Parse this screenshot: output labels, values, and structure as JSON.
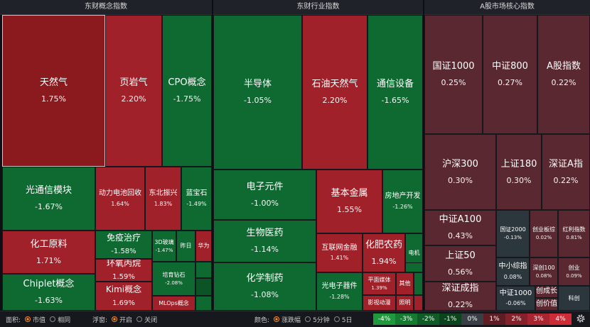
{
  "headers": {
    "concept": "东财概念指数",
    "industry": "东财行业指数",
    "market": "A股市场核心指数"
  },
  "colors": {
    "dark_red": "#8b1a1f",
    "red": "#a1212a",
    "green": "#0f6a31",
    "dark_green": "#0b5426",
    "maroon": "#5a2830",
    "slate": "#2c363d"
  },
  "concept_tiles": [
    {
      "name": "天然气",
      "pct": "1.75%"
    },
    {
      "name": "页岩气",
      "pct": "2.20%"
    },
    {
      "name": "CPO概念",
      "pct": "-1.75%"
    },
    {
      "name": "光通信模块",
      "pct": "-1.67%"
    },
    {
      "name": "动力电池回收",
      "pct": "1.64%"
    },
    {
      "name": "东北振兴",
      "pct": "1.83%"
    },
    {
      "name": "蓝宝石",
      "pct": "-1.49%"
    },
    {
      "name": "化工原料",
      "pct": "1.71%"
    },
    {
      "name": "免疫治疗",
      "pct": "-1.58%"
    },
    {
      "name": "3D玻璃",
      "pct": "-1.47%"
    },
    {
      "name": "昨日",
      "pct": ""
    },
    {
      "name": "华为",
      "pct": ""
    },
    {
      "name": "环氧丙烷",
      "pct": "1.59%"
    },
    {
      "name": "培育钻石",
      "pct": "-2.08%"
    },
    {
      "name": "Chiplet概念",
      "pct": "-1.63%"
    },
    {
      "name": "Kimi概念",
      "pct": "1.69%"
    },
    {
      "name": "MLOps概念",
      "pct": ""
    },
    {
      "name": "",
      "pct": ""
    },
    {
      "name": "",
      "pct": ""
    },
    {
      "name": "",
      "pct": ""
    }
  ],
  "industry_tiles": [
    {
      "name": "半导体",
      "pct": "-1.05%"
    },
    {
      "name": "石油天然气",
      "pct": "2.20%"
    },
    {
      "name": "通信设备",
      "pct": "-1.65%"
    },
    {
      "name": "电子元件",
      "pct": "-1.00%"
    },
    {
      "name": "基本金属",
      "pct": "1.55%"
    },
    {
      "name": "房地产开发",
      "pct": "-1.26%"
    },
    {
      "name": "生物医药",
      "pct": "-1.14%"
    },
    {
      "name": "互联网金融",
      "pct": "1.41%"
    },
    {
      "name": "化肥农药",
      "pct": "1.94%"
    },
    {
      "name": "电机",
      "pct": ""
    },
    {
      "name": "化学制药",
      "pct": "-1.08%"
    },
    {
      "name": "光电子器件",
      "pct": "-1.28%"
    },
    {
      "name": "平面媒体",
      "pct": "1.39%"
    },
    {
      "name": "其他",
      "pct": ""
    },
    {
      "name": "影视动漫",
      "pct": ""
    },
    {
      "name": "照明",
      "pct": ""
    },
    {
      "name": "",
      "pct": ""
    },
    {
      "name": "",
      "pct": ""
    },
    {
      "name": "",
      "pct": ""
    }
  ],
  "market_tiles": [
    {
      "name": "国证1000",
      "pct": "0.25%"
    },
    {
      "name": "中证800",
      "pct": "0.27%"
    },
    {
      "name": "A股指数",
      "pct": "0.22%"
    },
    {
      "name": "沪深300",
      "pct": "0.30%"
    },
    {
      "name": "上证180",
      "pct": "0.30%"
    },
    {
      "name": "深证A指",
      "pct": "0.22%"
    },
    {
      "name": "中证A100",
      "pct": "0.43%"
    },
    {
      "name": "国证2000",
      "pct": "-0.13%"
    },
    {
      "name": "创业板综",
      "pct": "0.02%"
    },
    {
      "name": "红利指数",
      "pct": "0.81%"
    },
    {
      "name": "上证50",
      "pct": "0.56%"
    },
    {
      "name": "中小综指",
      "pct": "0.08%"
    },
    {
      "name": "深创100",
      "pct": "0.08%"
    },
    {
      "name": "创业",
      "pct": "0.09%"
    },
    {
      "name": "深证成指",
      "pct": "0.22%"
    },
    {
      "name": "中证1000",
      "pct": "-0.06%"
    },
    {
      "name": "创成长",
      "pct": ""
    },
    {
      "name": "创价值",
      "pct": ""
    },
    {
      "name": "科创",
      "pct": ""
    }
  ],
  "toolbar": {
    "area_label": "面积:",
    "area_options": [
      "市值",
      "相同"
    ],
    "area_selected": 0,
    "float_label": "浮窗:",
    "float_options": [
      "开启",
      "关闭"
    ],
    "float_selected": 0,
    "color_label": "颜色:",
    "color_options": [
      "涨跌幅",
      "5分钟",
      "5日"
    ],
    "color_selected": 0
  },
  "legend": [
    {
      "label": "-4%",
      "color": "#1e9a3c"
    },
    {
      "label": "-3%",
      "color": "#167a30"
    },
    {
      "label": "-2%",
      "color": "#105c26"
    },
    {
      "label": "-1%",
      "color": "#0c441d"
    },
    {
      "label": "0%",
      "color": "#3a3f47"
    },
    {
      "label": "1%",
      "color": "#5e1d22"
    },
    {
      "label": "2%",
      "color": "#84212a"
    },
    {
      "label": "3%",
      "color": "#a92630"
    },
    {
      "label": "4%",
      "color": "#cf2b36"
    }
  ]
}
